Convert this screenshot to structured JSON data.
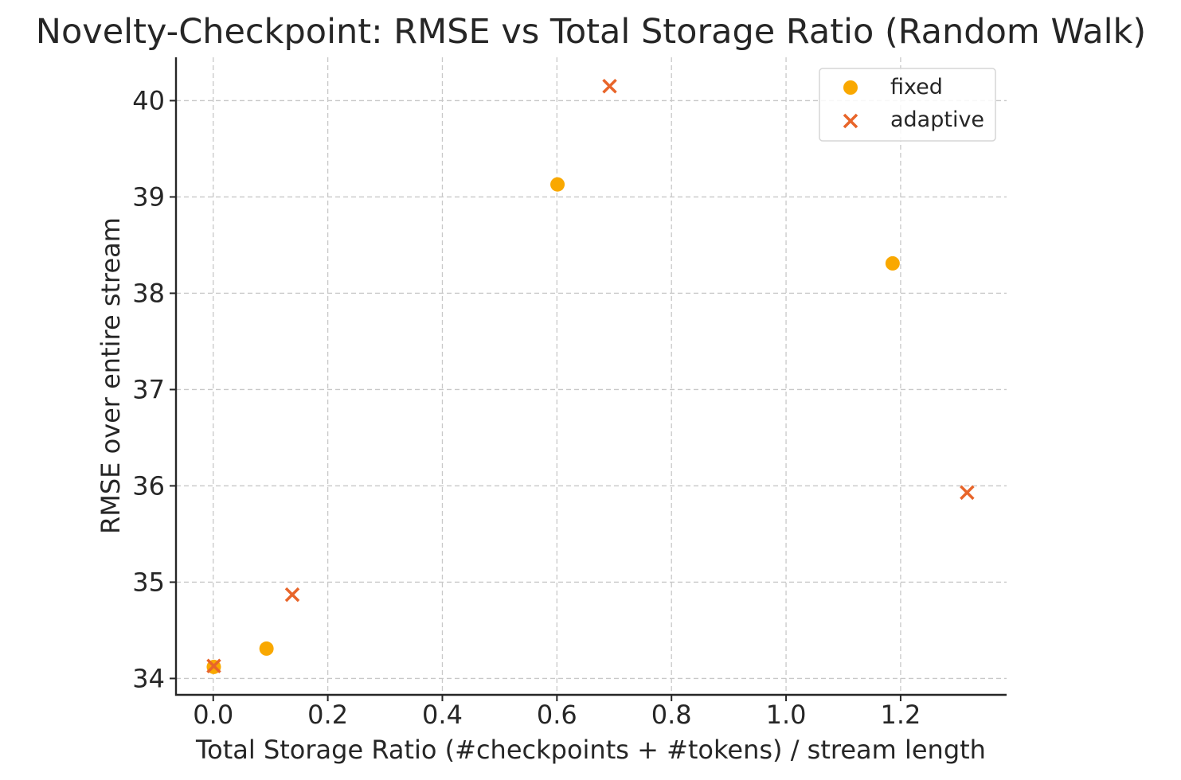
{
  "chart_data": {
    "type": "scatter",
    "title": "Novelty-Checkpoint: RMSE vs Total Storage Ratio (Random Walk)",
    "xlabel": "Total Storage Ratio (#checkpoints + #tokens) / stream length",
    "ylabel": "RMSE over entire stream",
    "xlim": [
      -0.065,
      1.385
    ],
    "ylim": [
      33.83,
      40.45
    ],
    "xticks": [
      0.0,
      0.2,
      0.4,
      0.6,
      0.8,
      1.0,
      1.2
    ],
    "xtick_labels": [
      "0.0",
      "0.2",
      "0.4",
      "0.6",
      "0.8",
      "1.0",
      "1.2"
    ],
    "yticks": [
      34,
      35,
      36,
      37,
      38,
      39,
      40
    ],
    "ytick_labels": [
      "34",
      "35",
      "36",
      "37",
      "38",
      "39",
      "40"
    ],
    "grid": true,
    "legend_position": "top-right",
    "series": [
      {
        "name": "fixed",
        "marker": "circle",
        "color": "#F9A800",
        "x": [
          0.001,
          0.093,
          0.601,
          1.186
        ],
        "y": [
          34.12,
          34.31,
          39.13,
          38.31
        ]
      },
      {
        "name": "adaptive",
        "marker": "x",
        "color": "#E8652A",
        "x": [
          0.001,
          0.138,
          0.692,
          1.316
        ],
        "y": [
          34.13,
          34.87,
          40.15,
          35.93
        ]
      }
    ]
  }
}
